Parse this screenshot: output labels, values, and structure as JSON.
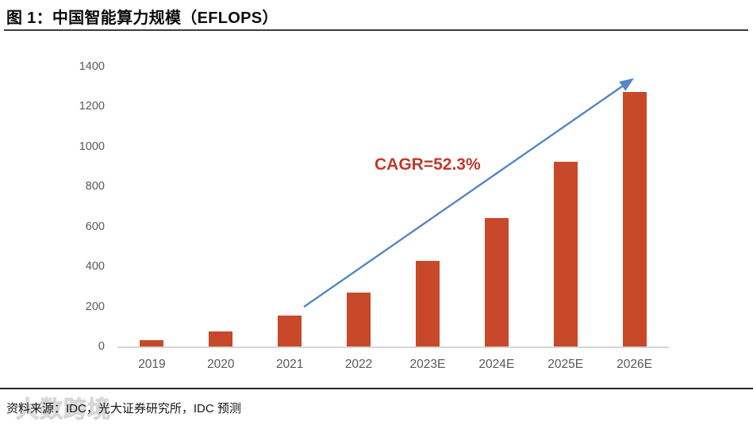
{
  "title": "图 1：中国智能算力规模（EFLOPS）",
  "source_note": "资料来源：IDC，光大证券研究所，IDC 预测",
  "watermark": {
    "text": "大数跨境"
  },
  "annotation": {
    "cagr_label": "CAGR=52.3%"
  },
  "colors": {
    "bar": "#c7492a",
    "arrow": "#5585c5",
    "cagr_text": "#c0392b",
    "axis_text": "#595959",
    "axis_line": "#d6d6d6",
    "title_rule": "#3d3d3d",
    "bottom_rule": "#262626"
  },
  "chart_data": {
    "type": "bar",
    "title": "图 1：中国智能算力规模（EFLOPS）",
    "categories": [
      "2019",
      "2020",
      "2021",
      "2022",
      "2023E",
      "2024E",
      "2025E",
      "2026E"
    ],
    "values": [
      32,
      75,
      155,
      268,
      427,
      641,
      923,
      1274
    ],
    "unit": "EFLOPS",
    "xlabel": "",
    "ylabel": "",
    "ylim": [
      0,
      1400
    ],
    "ytick_step": 200,
    "grid": false,
    "legend": false,
    "annotation": "CAGR=52.3%",
    "annotation_arrow": {
      "from_category": "2021",
      "to_category": "2026E",
      "direction": "up-right"
    }
  }
}
